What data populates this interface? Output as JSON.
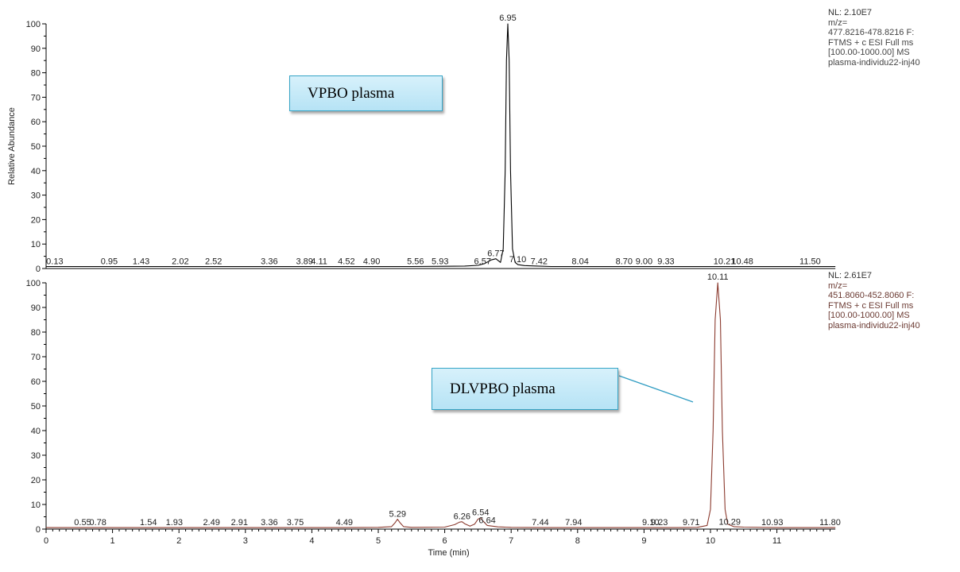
{
  "chart_data": [
    {
      "type": "line",
      "xlabel": "",
      "ylabel": "Relative Abundance",
      "xlim": [
        0,
        11.88
      ],
      "ylim": [
        0,
        100
      ],
      "yticks": [
        0,
        10,
        20,
        30,
        40,
        50,
        60,
        70,
        80,
        90,
        100
      ],
      "line_color": "#000000",
      "callout": "VPBO plasma",
      "info": {
        "nl": "NL: 2.10E7",
        "lines": [
          "m/z=",
          "477.8216-478.8216 F:",
          "FTMS + c ESI Full ms",
          "[100.00-1000.00]  MS",
          "plasma-individu22-inj40"
        ]
      },
      "main_peak": {
        "rt": 6.95,
        "value": 100,
        "label": "6.95"
      },
      "series": [
        {
          "x": [
            0,
            0.5,
            1,
            1.5,
            2,
            2.5,
            3,
            3.5,
            4,
            4.5,
            5,
            5.5,
            6,
            6.3,
            6.5,
            6.6,
            6.7,
            6.77,
            6.84,
            6.88,
            6.91,
            6.93,
            6.95,
            6.97,
            6.99,
            7.02,
            7.06,
            7.1,
            7.2,
            7.4,
            7.6,
            8,
            8.5,
            9,
            9.5,
            10,
            10.5,
            11,
            11.5,
            11.88
          ],
          "y": [
            0.8,
            0.8,
            0.8,
            0.8,
            0.8,
            0.8,
            0.8,
            0.8,
            0.8,
            0.8,
            0.8,
            0.8,
            0.9,
            1.0,
            1.3,
            2.0,
            3.5,
            4.0,
            2.5,
            8,
            40,
            85,
            100,
            85,
            40,
            8,
            2.5,
            1.6,
            1.2,
            1.0,
            0.8,
            0.8,
            0.8,
            0.8,
            0.8,
            0.8,
            0.8,
            0.8,
            0.8,
            0.8
          ]
        }
      ],
      "peak_labels": [
        {
          "x": 0.13,
          "y": 0.8,
          "label": "0.13"
        },
        {
          "x": 0.95,
          "y": 0.8,
          "label": "0.95"
        },
        {
          "x": 1.43,
          "y": 0.8,
          "label": "1.43"
        },
        {
          "x": 2.02,
          "y": 0.8,
          "label": "2.02"
        },
        {
          "x": 2.52,
          "y": 0.8,
          "label": "2.52"
        },
        {
          "x": 3.36,
          "y": 0.8,
          "label": "3.36"
        },
        {
          "x": 3.89,
          "y": 0.8,
          "label": "3.89"
        },
        {
          "x": 4.11,
          "y": 0.8,
          "label": "4.11"
        },
        {
          "x": 4.52,
          "y": 0.8,
          "label": "4.52"
        },
        {
          "x": 4.9,
          "y": 0.8,
          "label": "4.90"
        },
        {
          "x": 5.56,
          "y": 0.8,
          "label": "5.56"
        },
        {
          "x": 5.93,
          "y": 0.8,
          "label": "5.93"
        },
        {
          "x": 6.57,
          "y": 0.8,
          "label": "6.57"
        },
        {
          "x": 6.77,
          "y": 4.0,
          "label": "6.77"
        },
        {
          "x": 7.1,
          "y": 1.6,
          "label": "7.10"
        },
        {
          "x": 7.42,
          "y": 0.8,
          "label": "7.42"
        },
        {
          "x": 8.04,
          "y": 0.8,
          "label": "8.04"
        },
        {
          "x": 8.7,
          "y": 0.8,
          "label": "8.70"
        },
        {
          "x": 9.0,
          "y": 0.8,
          "label": "9.00"
        },
        {
          "x": 9.33,
          "y": 0.8,
          "label": "9.33"
        },
        {
          "x": 10.21,
          "y": 0.8,
          "label": "10.21"
        },
        {
          "x": 10.48,
          "y": 0.8,
          "label": "10.48"
        },
        {
          "x": 11.5,
          "y": 0.8,
          "label": "11.50"
        }
      ]
    },
    {
      "type": "line",
      "xlabel": "Time (min)",
      "ylabel": "",
      "xlim": [
        0,
        11.88
      ],
      "ylim": [
        0,
        100
      ],
      "xticks": [
        0,
        1,
        2,
        3,
        4,
        5,
        6,
        7,
        8,
        9,
        10,
        11
      ],
      "yticks": [
        0,
        10,
        20,
        30,
        40,
        50,
        60,
        70,
        80,
        90,
        100
      ],
      "line_color": "#8b3a2e",
      "callout": "DLVPBO plasma",
      "info": {
        "nl": "NL: 2.61E7",
        "lines": [
          "m/z=",
          "451.8060-452.8060 F:",
          "FTMS + c ESI Full ms",
          "[100.00-1000.00]  MS",
          "plasma-individu22-inj40"
        ]
      },
      "main_peak": {
        "rt": 10.11,
        "value": 100,
        "label": "10.11"
      },
      "series": [
        {
          "x": [
            0,
            0.5,
            1,
            1.5,
            2,
            2.5,
            3,
            3.5,
            4,
            4.5,
            5,
            5.2,
            5.25,
            5.29,
            5.33,
            5.38,
            5.5,
            6,
            6.15,
            6.22,
            6.26,
            6.3,
            6.38,
            6.45,
            6.5,
            6.54,
            6.58,
            6.64,
            6.8,
            7,
            7.5,
            8,
            8.5,
            9,
            9.5,
            9.8,
            9.95,
            10.0,
            10.04,
            10.07,
            10.11,
            10.15,
            10.18,
            10.22,
            10.26,
            10.35,
            10.5,
            11,
            11.5,
            11.88
          ],
          "y": [
            0.6,
            0.6,
            0.6,
            0.6,
            0.6,
            0.6,
            0.6,
            0.6,
            0.6,
            0.6,
            0.7,
            1.0,
            2.5,
            4.0,
            2.5,
            1.0,
            0.7,
            0.8,
            1.8,
            2.8,
            3.0,
            2.2,
            1.2,
            2.0,
            4.0,
            4.6,
            3.2,
            1.5,
            0.9,
            0.7,
            0.6,
            0.6,
            0.6,
            0.6,
            0.6,
            0.7,
            1.5,
            8,
            40,
            85,
            100,
            85,
            40,
            8,
            2,
            1.0,
            0.8,
            0.6,
            0.6,
            0.6
          ]
        }
      ],
      "peak_labels": [
        {
          "x": 0.55,
          "y": 0.6,
          "label": "0.55"
        },
        {
          "x": 0.78,
          "y": 0.6,
          "label": "0.78"
        },
        {
          "x": 1.54,
          "y": 0.6,
          "label": "1.54"
        },
        {
          "x": 1.93,
          "y": 0.6,
          "label": "1.93"
        },
        {
          "x": 2.49,
          "y": 0.6,
          "label": "2.49"
        },
        {
          "x": 2.91,
          "y": 0.6,
          "label": "2.91"
        },
        {
          "x": 3.36,
          "y": 0.6,
          "label": "3.36"
        },
        {
          "x": 3.75,
          "y": 0.6,
          "label": "3.75"
        },
        {
          "x": 4.49,
          "y": 0.6,
          "label": "4.49"
        },
        {
          "x": 5.29,
          "y": 4.0,
          "label": "5.29"
        },
        {
          "x": 6.26,
          "y": 3.0,
          "label": "6.26"
        },
        {
          "x": 6.54,
          "y": 4.6,
          "label": "6.54"
        },
        {
          "x": 6.64,
          "y": 1.5,
          "label": "6.64"
        },
        {
          "x": 7.44,
          "y": 0.6,
          "label": "7.44"
        },
        {
          "x": 7.94,
          "y": 0.6,
          "label": "7.94"
        },
        {
          "x": 9.1,
          "y": 0.6,
          "label": "9.10"
        },
        {
          "x": 9.23,
          "y": 0.6,
          "label": "9.23"
        },
        {
          "x": 9.71,
          "y": 0.7,
          "label": "9.71"
        },
        {
          "x": 10.29,
          "y": 0.8,
          "label": "10.29"
        },
        {
          "x": 10.93,
          "y": 0.6,
          "label": "10.93"
        },
        {
          "x": 11.8,
          "y": 0.6,
          "label": "11.80"
        }
      ]
    }
  ]
}
